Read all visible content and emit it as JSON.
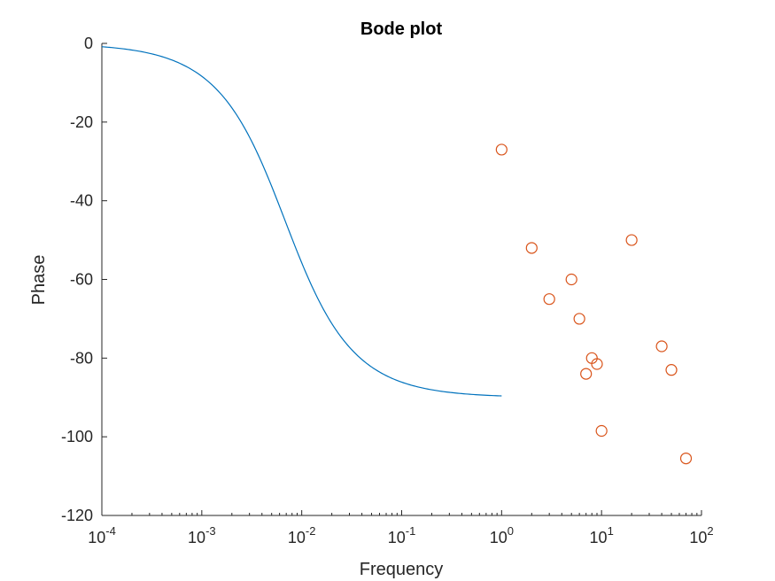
{
  "chart_data": {
    "type": "line",
    "title": "Bode plot",
    "xlabel": "Frequency",
    "ylabel": "Phase",
    "xscale": "log",
    "xlim": [
      0.0001,
      100
    ],
    "ylim": [
      -120,
      0
    ],
    "grid": false,
    "legend": "none",
    "xticks": [
      {
        "base": "10",
        "exp": "-4",
        "value": 0.0001
      },
      {
        "base": "10",
        "exp": "-3",
        "value": 0.001
      },
      {
        "base": "10",
        "exp": "-2",
        "value": 0.01
      },
      {
        "base": "10",
        "exp": "-1",
        "value": 0.1
      },
      {
        "base": "10",
        "exp": "0",
        "value": 1
      },
      {
        "base": "10",
        "exp": "1",
        "value": 10
      },
      {
        "base": "10",
        "exp": "2",
        "value": 100
      }
    ],
    "yticks": [
      "0",
      "-20",
      "-40",
      "-60",
      "-80",
      "-100",
      "-120"
    ],
    "series": [
      {
        "kind": "line",
        "color": "#0072BD",
        "model": "phase = -atan(f / 0.0068) in degrees",
        "x": [
          0.0001,
          0.0002,
          0.0005,
          0.001,
          0.002,
          0.003,
          0.005,
          0.007,
          0.01,
          0.02,
          0.03,
          0.05,
          0.1,
          0.2,
          0.5,
          1
        ],
        "y": [
          -0.8,
          -1.7,
          -4.2,
          -8.4,
          -16.4,
          -23.8,
          -36.3,
          -45.8,
          -55.8,
          -71.2,
          -77.2,
          -82.2,
          -86.1,
          -88.1,
          -89.2,
          -89.6
        ]
      },
      {
        "kind": "scatter",
        "color": "#D95319",
        "marker": "circle-open",
        "x": [
          1,
          2,
          3,
          5,
          6,
          7,
          8,
          9,
          10,
          20,
          40,
          50,
          70
        ],
        "y": [
          -27,
          -52,
          -65,
          -60,
          -70,
          -84,
          -80,
          -81.5,
          -98.5,
          -50,
          -77,
          -83,
          -105.5
        ]
      }
    ]
  }
}
